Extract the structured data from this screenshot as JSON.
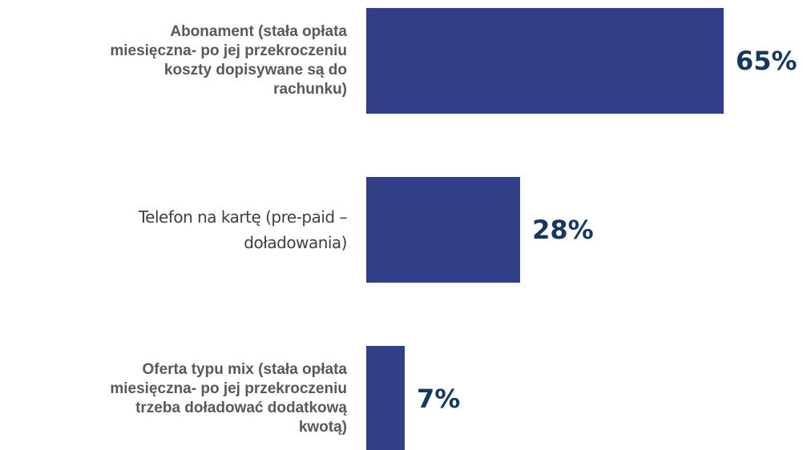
{
  "chart_data": {
    "type": "hbar",
    "categories": [
      "Abonament (stała opłata\nmiesięczna- po jej przekroczeniu\nkoszty dopisywane są do\nrachunku)",
      "Telefon na kartę (pre-paid –\ndoładowania)",
      "Oferta typu mix (stała opłata\nmiesięczna- po jej przekroczeniu\ntrzeba doładować dodatkową\nkwotą)"
    ],
    "values": [
      65,
      28,
      7
    ],
    "value_labels": [
      "65%",
      "28%",
      "7%"
    ],
    "color": "#323f88"
  }
}
